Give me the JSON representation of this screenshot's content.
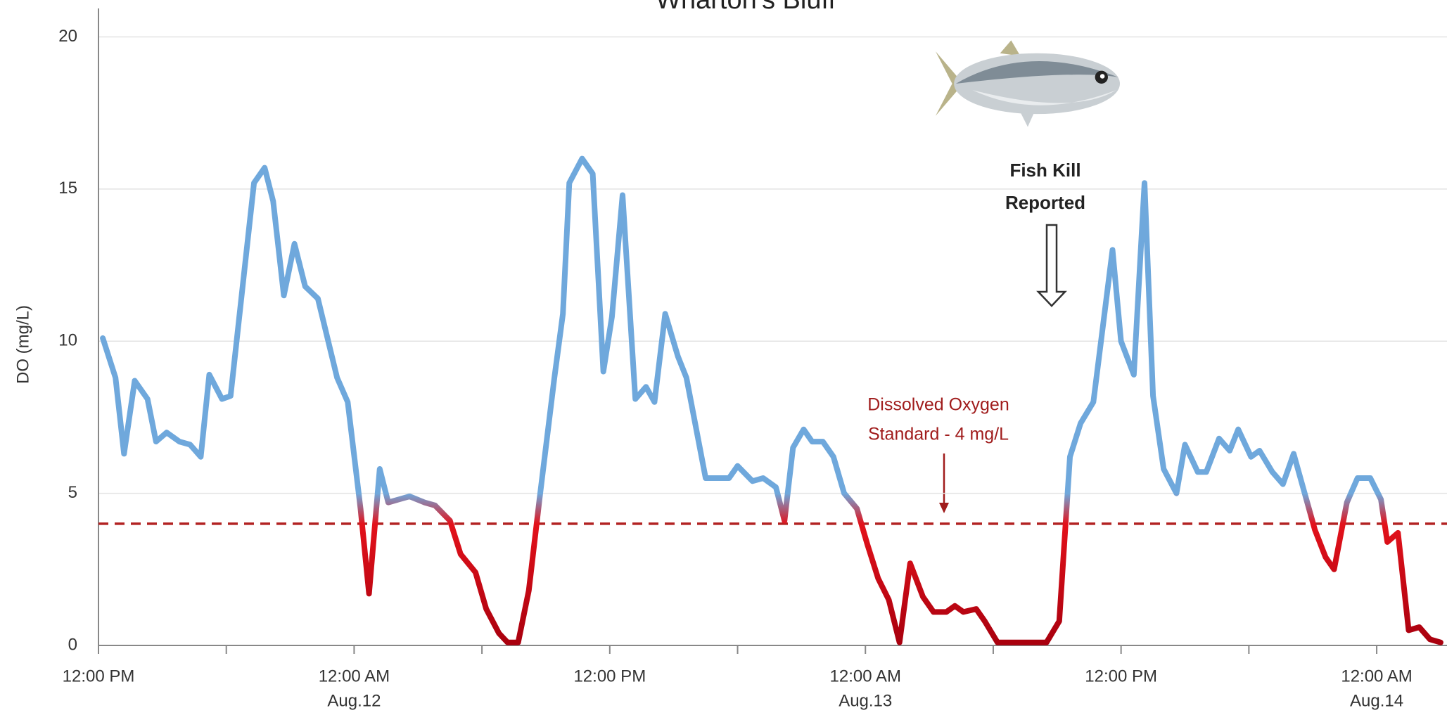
{
  "chart_data": {
    "type": "line",
    "title": "Wharton's Bluff",
    "y_label": "DO  (mg/L)",
    "ylim": [
      0,
      20
    ],
    "yticks": [
      0,
      5,
      10,
      15,
      20
    ],
    "xlim": [
      0,
      63.3
    ],
    "xticks": [
      {
        "value": 0,
        "label": "12:00 PM"
      },
      {
        "value": 12,
        "label": "12:00 AM"
      },
      {
        "value": 24,
        "label": "12:00 PM"
      },
      {
        "value": 36,
        "label": "12:00 AM"
      },
      {
        "value": 48,
        "label": "12:00 PM"
      },
      {
        "value": 60,
        "label": "12:00 AM"
      }
    ],
    "x_dates": [
      {
        "value": 12,
        "label": "Aug.12"
      },
      {
        "value": 36,
        "label": "Aug.13"
      },
      {
        "value": 60,
        "label": "Aug.14"
      }
    ],
    "x_minor_ticks": [
      6,
      18,
      30,
      42,
      54
    ],
    "grid": true,
    "threshold": 4,
    "threshold_color": "#b22222",
    "color_above": "#6fa8dc",
    "color_below": "#e3121b",
    "color_bottom": "#a8000e",
    "threshold_annotation": [
      "Dissolved Oxygen",
      "Standard - 4 mg/L"
    ],
    "event_annotation": [
      "Fish Kill",
      "Reported"
    ],
    "x": [
      0.2,
      0.8,
      1.2,
      1.7,
      2.3,
      2.7,
      3.2,
      3.8,
      4.3,
      4.8,
      5.2,
      5.8,
      6.2,
      7.3,
      7.8,
      8.2,
      8.7,
      9.2,
      9.7,
      10.3,
      11.2,
      11.7,
      12.3,
      12.7,
      13.2,
      13.6,
      14.1,
      14.6,
      15.3,
      15.8,
      16.5,
      17.0,
      17.7,
      18.2,
      18.8,
      19.2,
      19.7,
      20.2,
      20.7,
      21.4,
      21.8,
      22.1,
      22.7,
      23.2,
      23.7,
      24.1,
      24.6,
      25.2,
      25.7,
      26.1,
      26.6,
      27.2,
      27.6,
      28.5,
      29.2,
      29.6,
      30.0,
      30.7,
      31.2,
      31.8,
      32.2,
      32.6,
      33.1,
      33.5,
      34.0,
      34.5,
      35.0,
      35.6,
      36.1,
      36.6,
      37.1,
      37.6,
      38.1,
      38.7,
      39.2,
      39.8,
      40.2,
      40.6,
      41.2,
      41.6,
      42.2,
      44.5,
      45.1,
      45.6,
      46.1,
      46.7,
      47.6,
      48.0,
      48.6,
      49.1,
      49.5,
      50.0,
      50.6,
      51.0,
      51.6,
      52.0,
      52.6,
      53.1,
      53.5,
      54.1,
      54.5,
      55.1,
      55.6,
      56.1,
      56.7,
      57.1,
      57.6,
      58.0,
      58.6,
      59.1,
      59.7,
      60.2,
      60.5,
      61.0,
      61.5,
      62.0,
      62.5,
      63.0
    ],
    "values": [
      10.1,
      8.8,
      6.3,
      8.7,
      8.1,
      6.7,
      7.0,
      6.7,
      6.6,
      6.2,
      8.9,
      8.1,
      8.2,
      15.2,
      15.7,
      14.6,
      11.5,
      13.2,
      11.8,
      11.4,
      8.8,
      8.0,
      4.5,
      1.7,
      5.8,
      4.7,
      4.8,
      4.9,
      4.7,
      4.6,
      4.1,
      3.0,
      2.4,
      1.2,
      0.4,
      0.1,
      0.1,
      1.8,
      4.8,
      8.8,
      10.9,
      15.2,
      16.0,
      15.5,
      9.0,
      10.8,
      14.8,
      8.1,
      8.5,
      8.0,
      10.9,
      9.5,
      8.8,
      5.5,
      5.5,
      5.5,
      5.9,
      5.4,
      5.5,
      5.2,
      4.1,
      6.5,
      7.1,
      6.7,
      6.7,
      6.2,
      5.0,
      4.5,
      3.3,
      2.2,
      1.5,
      0.1,
      2.7,
      1.6,
      1.1,
      1.1,
      1.3,
      1.1,
      1.2,
      0.8,
      0.1,
      0.1,
      0.8,
      6.2,
      7.3,
      8.0,
      13.0,
      10.0,
      8.9,
      15.2,
      8.2,
      5.8,
      5.0,
      6.6,
      5.7,
      5.7,
      6.8,
      6.4,
      7.1,
      6.2,
      6.4,
      5.7,
      5.3,
      6.3,
      4.8,
      3.8,
      2.9,
      2.5,
      4.7,
      5.5,
      5.5,
      4.8,
      3.4,
      3.7,
      0.5,
      0.6,
      0.2,
      0.1
    ]
  }
}
